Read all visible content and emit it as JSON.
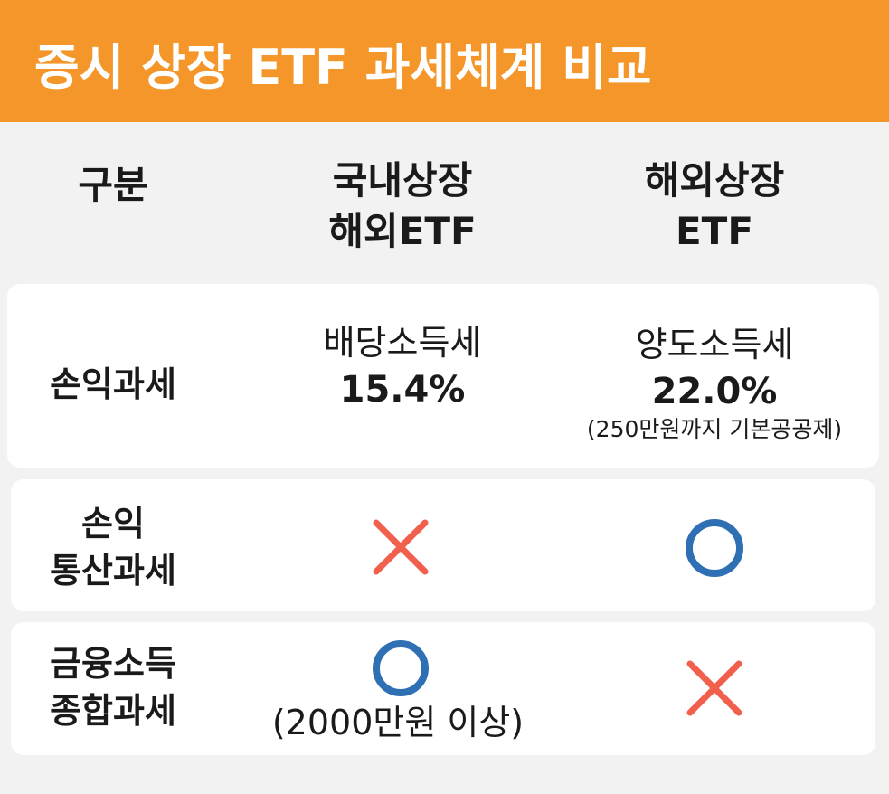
{
  "header": {
    "title": "증시 상장 ETF 과세체계 비교"
  },
  "table": {
    "header": [
      [
        "구분"
      ],
      [
        "국내상장",
        "해외ETF"
      ],
      [
        "해외상장",
        "ETF"
      ]
    ],
    "rows": [
      {
        "label": [
          "손익과세"
        ],
        "cells": [
          [
            "배당소득세",
            "15.4%"
          ],
          [
            "양도소득세",
            "22.0%",
            "(250만원까지 기본공공제)"
          ]
        ]
      },
      {
        "label": [
          "손익",
          "통산과세"
        ],
        "cells": [
          [],
          []
        ]
      },
      {
        "label": [
          "금융소득",
          "종합과세"
        ],
        "cells": [
          [
            "(2000만원 이상)"
          ],
          []
        ]
      }
    ]
  }
}
